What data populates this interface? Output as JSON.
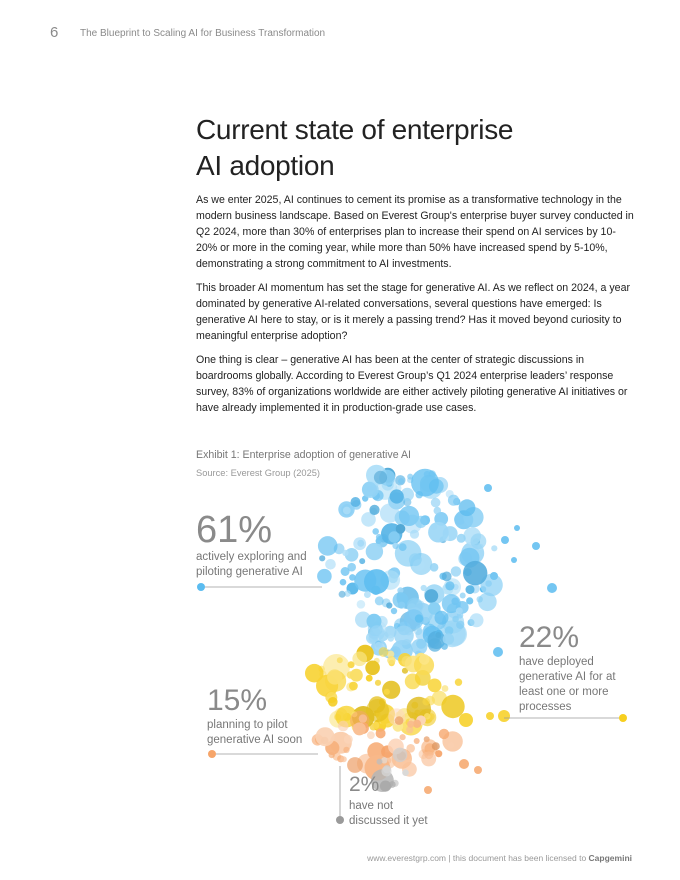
{
  "header": {
    "page_number": "6",
    "running_title": "The Blueprint to Scaling AI for Business Transformation"
  },
  "heading": {
    "line1": "Current state of enterprise",
    "line2": "AI adoption"
  },
  "paragraphs": [
    "As we enter 2025, AI continues to cement its promise as a transformative technology in the modern business landscape. Based on Everest Group's enterprise buyer survey conducted in Q2 2024, more than 30% of enterprises plan to increase their spend on AI services by 10-20% or more in the coming year, while more than 50% have increased spend by 5-10%, demonstrating a strong commitment to AI investments.",
    "This broader AI momentum has set the stage for generative AI. As we reflect on 2024, a year dominated by generative AI-related conversations, several questions have emerged: Is generative AI here to stay, or is it merely a passing trend? Has it moved beyond curiosity to meaningful enterprise adoption?",
    "One thing is clear – generative AI has been at the center of strategic discussions in boardrooms globally. According to Everest Group’s Q1 2024 enterprise leaders’ response survey, 83% of organizations worldwide are either actively piloting generative AI initiatives or have already implemented it in production-grade use cases."
  ],
  "exhibit": {
    "title": "Exhibit 1: Enterprise adoption of generative AI",
    "source": "Source: Everest Group (2025)"
  },
  "chart_data": {
    "type": "bubble-cluster",
    "title": "Exhibit 1: Enterprise adoption of generative AI",
    "segments": [
      {
        "name": "exploring",
        "value": 61,
        "value_label": "61%",
        "label_lines": [
          "actively exploring and",
          "piloting generative AI"
        ],
        "color": "#5bbcf0"
      },
      {
        "name": "deployed",
        "value": 22,
        "value_label": "22%",
        "label_lines": [
          "have deployed",
          "generative AI for at",
          "least one or more",
          "processes"
        ],
        "color": "#f7cf1f"
      },
      {
        "name": "planning",
        "value": 15,
        "value_label": "15%",
        "label_lines": [
          "planning to pilot",
          "generative AI soon"
        ],
        "color": "#f6a56a"
      },
      {
        "name": "not-discussed",
        "value": 2,
        "value_label": "2%",
        "label_lines": [
          "have not",
          "discussed it yet"
        ],
        "color": "#b9b9b9"
      }
    ]
  },
  "footer": {
    "text": "www.everestgrp.com | this document has been licensed to ",
    "licensee": "Capgemini"
  }
}
